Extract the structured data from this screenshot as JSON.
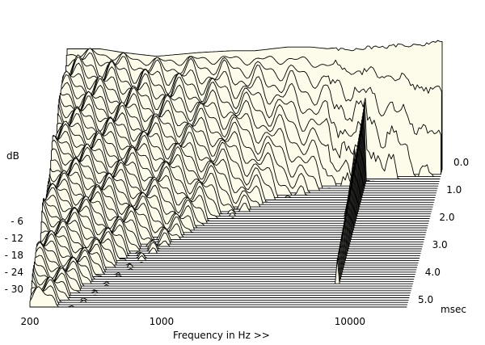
{
  "chart_data": {
    "type": "waterfall",
    "ylabel": "dB",
    "xlabel": "Frequency in Hz >>",
    "x_scale": "log",
    "xlim_hz": [
      200,
      20000
    ],
    "x_ticks": [
      {
        "value": 200,
        "label": "200"
      },
      {
        "value": 1000,
        "label": "1000"
      },
      {
        "value": 10000,
        "label": "10000"
      }
    ],
    "ylim_db": [
      -36,
      0
    ],
    "y_ticks": [
      {
        "value": -6,
        "label": "- 6"
      },
      {
        "value": -12,
        "label": "- 12"
      },
      {
        "value": -18,
        "label": "- 18"
      },
      {
        "value": -24,
        "label": "- 24"
      },
      {
        "value": -30,
        "label": "- 30"
      }
    ],
    "z_axis": {
      "unit_label": "msec",
      "range_ms": [
        0,
        5
      ],
      "ticks": [
        {
          "value": 0,
          "label": "0.0"
        },
        {
          "value": 1,
          "label": "1.0"
        },
        {
          "value": 2,
          "label": "2.0"
        },
        {
          "value": 3,
          "label": "3.0"
        },
        {
          "value": 4,
          "label": "4.0"
        },
        {
          "value": 5,
          "label": "5.0"
        }
      ]
    },
    "slice_count": 60,
    "slice_step_ms": 0.085,
    "floor_db": -36,
    "initial_response": {
      "freq_hz": [
        200,
        300,
        400,
        600,
        1000,
        1500,
        2000,
        3000,
        4000,
        5000,
        6000,
        7000,
        8000,
        10000,
        12000,
        15000,
        18000,
        20000
      ],
      "db": [
        -3.5,
        -3.5,
        -4.5,
        -5.5,
        -4.5,
        -4.0,
        -4.0,
        -3.0,
        -3.0,
        -3.5,
        -3.5,
        -3.5,
        -3.0,
        -3.0,
        -2.5,
        -2.5,
        -2.0,
        -1.5
      ]
    },
    "resonances": [
      {
        "freq_hz": 8000,
        "level_db": -12,
        "decay_ms": 4.2
      },
      {
        "freq_hz": 7100,
        "level_db": -20,
        "decay_ms": 2.0
      },
      {
        "freq_hz": 9500,
        "level_db": -22,
        "decay_ms": 2.2
      }
    ],
    "colors": {
      "fill": "#fdfbe9",
      "line": "#000000",
      "background": "#ffffff"
    }
  }
}
